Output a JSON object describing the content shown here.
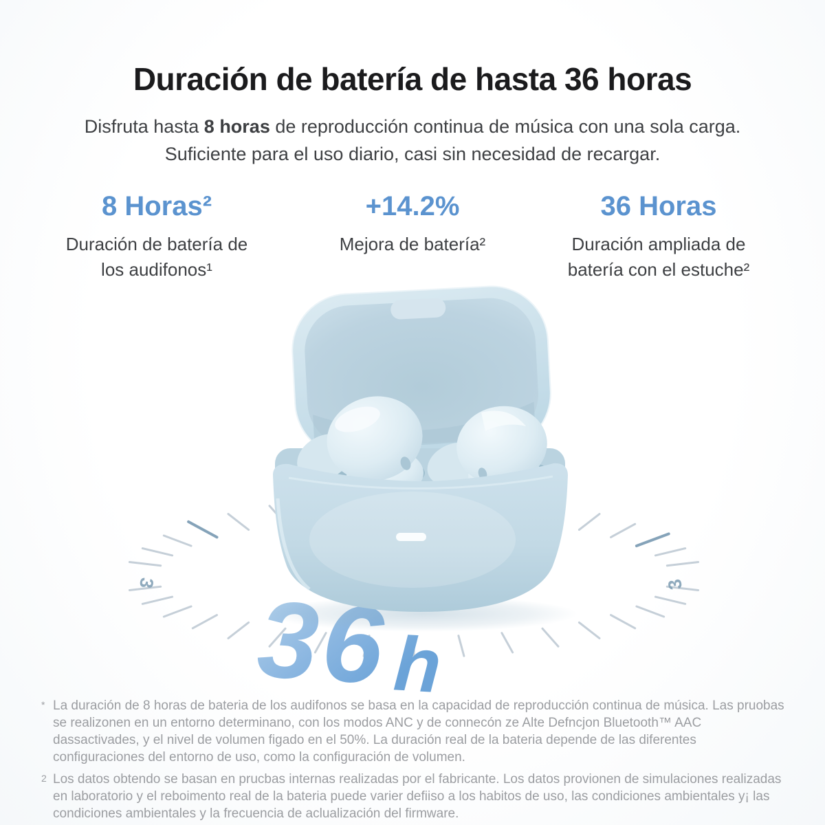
{
  "colors": {
    "accent_blue": "#5b93cf",
    "title_color": "#1b1b1d",
    "body_color": "#3d3f42",
    "footnote_color": "#9b9da1",
    "case_blue": "#c6dce8",
    "badge_blue_light": "#b7d3ea",
    "badge_blue_dark": "#6ba3d8",
    "tick_color": "#c5cfd8",
    "tick_accent": "#85a3b9"
  },
  "header": {
    "title": "Duración de batería de hasta 36 horas",
    "subtitle_pre": "Disfruta hasta ",
    "subtitle_bold": "8 horas",
    "subtitle_post": " de reproducción continua de música con una sola carga.",
    "subtitle_line2": "Suficiente para el uso diario, casi sin necesidad de recargar."
  },
  "stats": [
    {
      "value": "8 Horas²",
      "caption_line1": "Duración de batería de",
      "caption_line2": "los audifonos¹"
    },
    {
      "value": "+14.2%",
      "caption_line1": "Mejora de batería²",
      "caption_line2": ""
    },
    {
      "value": "36 Horas",
      "caption_line1": "Duración ampliada de",
      "caption_line2": "batería con el estuche²"
    }
  ],
  "badge": {
    "number": "36",
    "unit": "h"
  },
  "dial": {
    "left_numeral": "3",
    "right_numeral": "3"
  },
  "footnotes": [
    {
      "marker": "*",
      "text": "La duración de 8 horas de bateria de los audifonos se basa en la capacidad de reproducción continua de música. Las pruobas se realizonen en un entorno determinano, con los modos ANC y de connecón ze Alte Defncjon Bluetooth™ AAC dassactivades, y el nivel de volumen figado en el 50%. La duración real de la bateria depende de las diferentes configuraciones del entorno de uso, como la configuración de volumen."
    },
    {
      "marker": "2",
      "text": "Los datos obtendo se basan en prucbas internas realizadas por el fabricante. Los datos provionen de simulaciones realizadas en laboratorio y el reboimento real de la bateria puede varier defiiso a los habitos de uso, las condiciones ambientales y¡ las condiciones ambientales y la frecuencia de aclualización del firmware."
    }
  ]
}
